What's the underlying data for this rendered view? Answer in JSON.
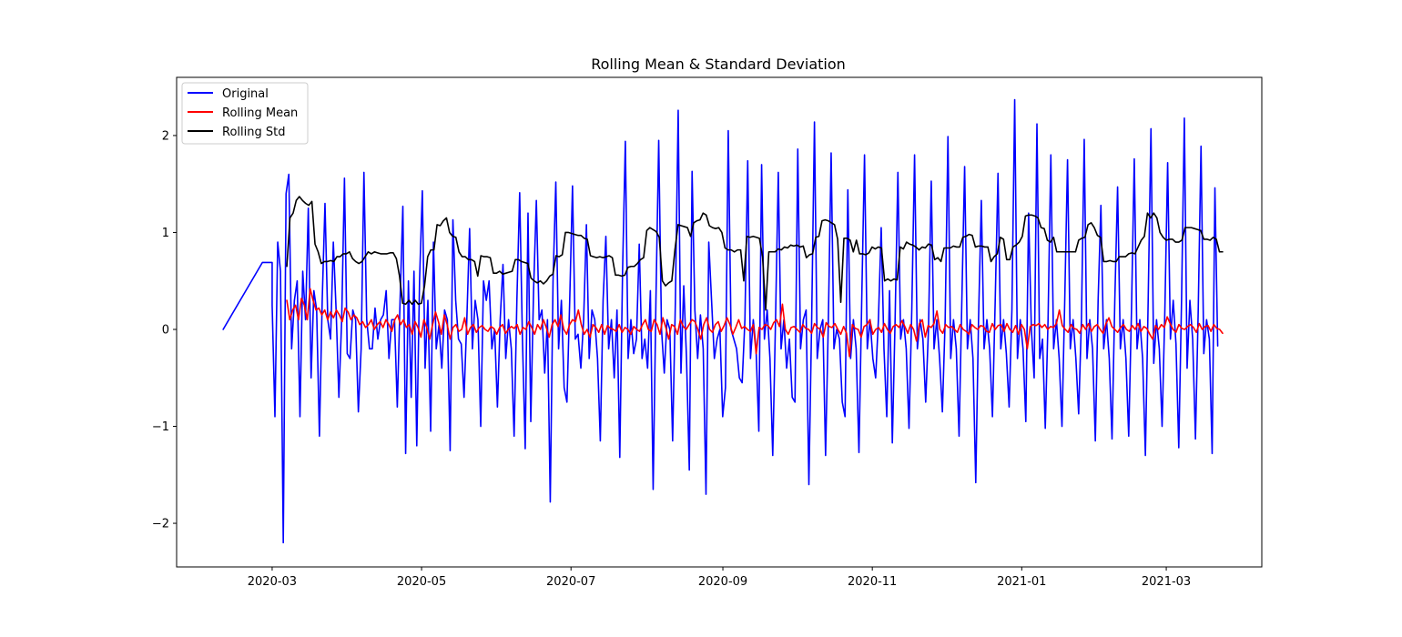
{
  "chart_data": {
    "type": "line",
    "title": "Rolling Mean & Standard Deviation",
    "xlabel": "",
    "ylabel": "",
    "x_axis": {
      "kind": "date",
      "range": [
        "2020-01-22",
        "2021-04-09"
      ],
      "tick_labels": [
        "2020-03",
        "2020-05",
        "2020-07",
        "2020-09",
        "2020-11",
        "2021-01",
        "2021-03"
      ],
      "tick_dates": [
        "2020-03-01",
        "2020-05-01",
        "2020-07-01",
        "2020-09-01",
        "2020-11-01",
        "2021-01-01",
        "2021-03-01"
      ]
    },
    "y_axis": {
      "range": [
        -2.45,
        2.6
      ],
      "ticks": [
        -2,
        -1,
        0,
        1,
        2
      ],
      "tick_labels": [
        "−2",
        "−1",
        "0",
        "1",
        "2"
      ]
    },
    "grid": false,
    "legend_position": "top-left",
    "series": [
      {
        "name": "Original",
        "color": "#0000ff",
        "start_date": "2020-02-10",
        "leading_points": [
          [
            0,
            0.0
          ],
          [
            16,
            0.69
          ],
          [
            19,
            0.69
          ],
          [
            20,
            0.69
          ]
        ],
        "period": 7,
        "daily_from": "2020-03-01",
        "daily_end": "2021-03-22",
        "values": [
          0.25,
          -0.9,
          0.9,
          0.6,
          -2.2,
          1.4,
          1.6,
          -0.2,
          0.3,
          0.5,
          -0.9,
          0.6,
          0.1,
          1.25,
          -0.5,
          0.4,
          0.2,
          -1.1,
          0.3,
          1.3,
          0.1,
          -0.1,
          0.9,
          0.2,
          -0.7,
          0.1,
          1.56,
          -0.25,
          -0.3,
          0.2,
          0.1,
          -0.85,
          -0.2,
          1.62,
          0.1,
          -0.2,
          -0.2,
          0.22,
          -0.1,
          0.1,
          0.15,
          0.4,
          -0.3,
          0.1,
          0.1,
          -0.8,
          0.3,
          1.27,
          -1.28,
          0.5,
          -0.7,
          0.6,
          -1.2,
          0.5,
          1.43,
          -0.4,
          0.3,
          -1.05,
          0.9,
          -0.2,
          0.05,
          -0.4,
          0.2,
          0.1,
          -1.25,
          1.13,
          0.3,
          -0.1,
          -0.15,
          -0.7,
          0.1,
          1.04,
          -0.2,
          0.3,
          0.1,
          -1.0,
          0.5,
          0.3,
          0.5,
          -0.2,
          0.0,
          -0.8,
          0.1,
          0.67,
          -0.3,
          0.1,
          -0.2,
          -1.1,
          0.3,
          1.41,
          -0.1,
          -1.23,
          1.2,
          -0.95,
          0.4,
          1.33,
          0.1,
          0.2,
          -0.45,
          0.1,
          -1.78,
          0.5,
          1.52,
          -0.2,
          0.3,
          -0.6,
          -0.75,
          0.3,
          1.48,
          -0.1,
          -0.05,
          -0.4,
          0.1,
          1.08,
          -0.3,
          0.2,
          0.1,
          -0.3,
          -1.15,
          0.3,
          0.96,
          -0.2,
          0.1,
          -0.5,
          0.2,
          -1.32,
          0.6,
          1.94,
          -0.3,
          0.1,
          -0.25,
          -0.1,
          0.88,
          -0.3,
          -0.1,
          -0.4,
          0.4,
          -1.65,
          0.3,
          1.95,
          0.0,
          -0.45,
          0.1,
          0.0,
          -1.15,
          0.3,
          2.26,
          -0.45,
          0.45,
          -0.3,
          -1.45,
          1.63,
          0.2,
          -0.3,
          0.15,
          -0.2,
          -1.7,
          0.9,
          0.3,
          -0.3,
          -0.1,
          0.0,
          -0.9,
          -0.6,
          2.05,
          0.0,
          -0.1,
          -0.2,
          -0.5,
          -0.55,
          0.1,
          1.74,
          -0.3,
          0.1,
          -0.2,
          -1.05,
          1.7,
          -0.1,
          0.2,
          -0.3,
          -1.3,
          0.1,
          1.62,
          -0.2,
          0.1,
          -0.4,
          -0.1,
          -0.7,
          -0.75,
          1.86,
          -0.2,
          0.1,
          0.2,
          -1.6,
          0.1,
          2.14,
          -0.3,
          0.0,
          0.1,
          -1.3,
          0.1,
          1.82,
          -0.2,
          0.0,
          -0.1,
          -0.75,
          -0.9,
          1.44,
          -0.3,
          0.1,
          -0.2,
          -1.27,
          0.3,
          1.8,
          -0.2,
          0.1,
          -0.3,
          -0.5,
          0.1,
          1.05,
          -0.2,
          -0.9,
          0.4,
          -1.17,
          0.1,
          1.62,
          -0.1,
          0.1,
          -0.2,
          -1.02,
          0.2,
          1.8,
          -0.2,
          0.1,
          -0.1,
          -0.75,
          0.0,
          1.53,
          -0.2,
          0.1,
          -0.3,
          -0.85,
          0.1,
          1.99,
          -0.3,
          0.1,
          -0.2,
          -1.1,
          0.3,
          1.68,
          -0.2,
          0.1,
          -0.3,
          -1.58,
          0.1,
          1.33,
          -0.2,
          0.1,
          -0.2,
          -0.9,
          0.3,
          1.61,
          -0.2,
          0.1,
          -0.25,
          -0.8,
          0.2,
          2.37,
          -0.3,
          0.1,
          -0.2,
          -0.95,
          1.2,
          0.0,
          -0.5,
          2.12,
          -0.3,
          -0.1,
          -1.02,
          0.1,
          1.8,
          -0.2,
          0.1,
          -0.3,
          -1.0,
          0.3,
          1.75,
          -0.2,
          0.1,
          -0.3,
          -0.87,
          0.1,
          1.96,
          -0.3,
          0.1,
          -0.2,
          -1.15,
          0.3,
          1.28,
          -0.2,
          0.1,
          -0.3,
          -1.13,
          0.3,
          1.47,
          -0.2,
          0.1,
          -0.3,
          -1.1,
          0.2,
          1.76,
          -0.2,
          0.1,
          -0.3,
          -1.3,
          0.3,
          2.07,
          -0.35,
          0.1,
          -0.2,
          -1.0,
          0.2,
          1.72,
          -0.1,
          0.3,
          -0.15,
          -1.22,
          0.3,
          2.18,
          -0.4,
          0.3,
          -0.1,
          -1.13,
          0.2,
          1.89,
          -0.25,
          0.1,
          -0.1,
          -1.28,
          1.46,
          -0.17
        ]
      },
      {
        "name": "Rolling Mean",
        "color": "#ff0000",
        "start_date": "2020-03-07",
        "values": [
          0.3,
          0.1,
          0.2,
          0.25,
          0.1,
          0.32,
          0.25,
          0.1,
          0.42,
          0.3,
          0.2,
          0.22,
          0.15,
          0.2,
          0.1,
          0.18,
          0.12,
          0.2,
          0.15,
          0.08,
          0.22,
          0.18,
          0.1,
          0.15,
          0.12,
          0.05,
          0.08,
          0.02,
          0.05,
          0.1,
          0.0,
          0.05,
          0.08,
          0.02,
          0.1,
          0.05,
          -0.02,
          0.1,
          0.15,
          0.05,
          0.1,
          0.02,
          0.05,
          -0.05,
          0.08,
          0.02,
          -0.08,
          0.1,
          0.02,
          -0.1,
          0.05,
          0.18,
          0.08,
          -0.05,
          0.15,
          0.05,
          -0.1,
          0.02,
          0.05,
          -0.02,
          0.0,
          0.12,
          -0.05,
          0.02,
          0.05,
          -0.03,
          0.02,
          0.04,
          0.0,
          -0.02,
          0.03,
          0.01,
          -0.05,
          0.02,
          0.05,
          -0.04,
          0.0,
          0.03,
          0.01,
          0.05,
          -0.05,
          0.02,
          0.0,
          0.08,
          0.02,
          -0.05,
          0.05,
          0.0,
          0.1,
          0.02,
          -0.08,
          0.05,
          0.1,
          0.03,
          0.15,
          0.0,
          -0.05,
          0.05,
          0.1,
          0.08,
          0.2,
          0.05,
          -0.05,
          0.0,
          -0.08,
          0.05,
          0.02,
          -0.03,
          0.05,
          -0.05,
          0.04,
          0.01,
          0.0,
          -0.02,
          0.05,
          -0.03,
          0.02,
          0.0,
          -0.05,
          0.03,
          0.0,
          -0.02,
          0.05,
          0.1,
          0.0,
          -0.02,
          0.1,
          0.05,
          -0.05,
          0.12,
          0.02,
          -0.1,
          0.05,
          0.03,
          -0.05,
          0.1,
          0.03,
          0.0,
          0.05,
          0.1,
          0.08,
          0.0,
          -0.1,
          0.05,
          0.12,
          0.0,
          -0.03,
          0.05,
          0.08,
          -0.02,
          0.04,
          0.12,
          0.05,
          -0.05,
          0.02,
          0.1,
          0.01,
          0.03,
          0.0,
          -0.02,
          0.05,
          -0.25,
          0.02,
          0.0,
          0.05,
          0.04,
          0.0,
          0.07,
          0.1,
          0.03,
          0.26,
          0.0,
          -0.05,
          0.02,
          0.03,
          0.0,
          -0.03,
          0.05,
          0.01,
          0.0,
          -0.04,
          0.06,
          0.02,
          0.0,
          -0.08,
          0.07,
          0.03,
          0.02,
          0.06,
          0.0,
          -0.05,
          0.03,
          -0.04,
          -0.28,
          0.05,
          0.01,
          0.0,
          -0.08,
          0.03,
          0.05,
          0.1,
          -0.05,
          0.0,
          0.02,
          -0.03,
          0.06,
          0.0,
          -0.04,
          0.03,
          0.05,
          0.02,
          0.09,
          0.03,
          -0.04,
          0.05,
          0.0,
          -0.12,
          0.06,
          0.1,
          -0.08,
          0.04,
          0.02,
          0.06,
          0.19,
          0.0,
          -0.04,
          0.05,
          0.02,
          0.03,
          0.0,
          -0.03,
          0.05,
          0.0,
          -0.02,
          -0.05,
          0.05,
          0.02,
          0.0,
          0.04,
          0.03,
          -0.02,
          -0.03,
          0.06,
          0.0,
          0.04,
          0.05,
          -0.02,
          0.06,
          0.0,
          -0.03,
          0.04,
          -0.05,
          0.05,
          0.0,
          -0.2,
          0.03,
          0.05,
          0.04,
          0.06,
          0.02,
          0.05,
          0.0,
          0.03,
          0.02,
          0.06,
          0.2,
          0.04,
          0.0,
          -0.03,
          0.05,
          0.01,
          0.0,
          -0.04,
          0.05,
          0.0,
          0.06,
          -0.02,
          0.03,
          0.05,
          0.0,
          -0.04,
          0.06,
          0.12,
          0.03,
          0.0,
          -0.03,
          0.02,
          0.05,
          0.0,
          -0.02,
          0.04,
          0.0,
          0.06,
          -0.02,
          0.03,
          0.01,
          -0.05,
          -0.1,
          0.04,
          0.0,
          0.05,
          0.02,
          0.13,
          0.06,
          0.0,
          -0.03,
          0.05,
          0.01,
          0.0,
          0.03,
          0.05,
          0.02,
          -0.03,
          0.06,
          0.0,
          0.03,
          0.04,
          -0.02,
          0.05,
          0.01,
          0.0,
          -0.04
        ]
      },
      {
        "name": "Rolling Std",
        "color": "#000000",
        "start_date": "2020-03-07",
        "values": [
          0.65,
          1.15,
          1.2,
          1.33,
          1.37,
          1.33,
          1.3,
          1.28,
          1.32,
          0.88,
          0.8,
          0.68,
          0.7,
          0.7,
          0.71,
          0.7,
          0.75,
          0.75,
          0.78,
          0.78,
          0.8,
          0.73,
          0.7,
          0.68,
          0.7,
          0.75,
          0.8,
          0.78,
          0.8,
          0.79,
          0.78,
          0.78,
          0.78,
          0.79,
          0.79,
          0.73,
          0.55,
          0.27,
          0.26,
          0.3,
          0.26,
          0.3,
          0.26,
          0.27,
          0.45,
          0.75,
          0.82,
          0.82,
          1.08,
          1.07,
          1.12,
          1.15,
          1.0,
          0.96,
          0.95,
          0.8,
          0.75,
          0.75,
          0.72,
          0.72,
          0.7,
          0.55,
          0.76,
          0.75,
          0.75,
          0.74,
          0.58,
          0.58,
          0.6,
          0.57,
          0.58,
          0.59,
          0.6,
          0.72,
          0.72,
          0.7,
          0.69,
          0.68,
          0.53,
          0.5,
          0.48,
          0.5,
          0.47,
          0.5,
          0.55,
          0.57,
          0.76,
          0.75,
          0.77,
          1.0,
          1.0,
          0.99,
          0.98,
          0.97,
          0.97,
          0.94,
          0.93,
          0.76,
          0.75,
          0.74,
          0.75,
          0.74,
          0.75,
          0.76,
          0.74,
          0.56,
          0.56,
          0.55,
          0.56,
          0.64,
          0.65,
          0.65,
          0.68,
          0.72,
          0.74,
          1.02,
          1.05,
          1.03,
          1.01,
          0.95,
          0.5,
          0.45,
          0.48,
          0.5,
          0.82,
          1.08,
          1.07,
          1.06,
          1.05,
          0.96,
          1.1,
          1.12,
          1.13,
          1.2,
          1.18,
          1.07,
          1.05,
          1.04,
          1.05,
          1.0,
          0.84,
          0.82,
          0.82,
          0.8,
          0.82,
          0.82,
          0.5,
          0.96,
          0.95,
          0.96,
          0.95,
          0.94,
          0.75,
          0.2,
          0.8,
          0.8,
          0.8,
          0.83,
          0.82,
          0.85,
          0.84,
          0.87,
          0.86,
          0.87,
          0.85,
          0.86,
          0.74,
          0.77,
          0.78,
          0.95,
          0.96,
          1.12,
          1.13,
          1.12,
          1.1,
          1.08,
          0.93,
          0.28,
          0.94,
          0.94,
          0.92,
          0.8,
          0.92,
          0.78,
          0.78,
          0.77,
          0.79,
          0.85,
          0.83,
          0.85,
          0.84,
          0.5,
          0.52,
          0.5,
          0.52,
          0.51,
          0.85,
          0.83,
          0.9,
          0.88,
          0.87,
          0.85,
          0.82,
          0.85,
          0.84,
          0.88,
          0.87,
          0.72,
          0.74,
          0.7,
          0.84,
          0.84,
          0.84,
          0.86,
          0.85,
          0.85,
          0.95,
          0.96,
          0.98,
          0.97,
          0.85,
          0.86,
          0.86,
          0.85,
          0.85,
          0.7,
          0.75,
          0.78,
          0.95,
          0.93,
          0.72,
          0.72,
          0.85,
          0.87,
          0.9,
          0.96,
          1.17,
          1.18,
          1.18,
          1.17,
          1.15,
          1.05,
          1.04,
          0.92,
          0.9,
          0.95,
          0.8,
          0.8,
          0.8,
          0.8,
          0.8,
          0.8,
          0.8,
          0.92,
          0.94,
          0.95,
          1.08,
          1.1,
          1.05,
          0.97,
          0.95,
          0.7,
          0.7,
          0.71,
          0.7,
          0.7,
          0.75,
          0.75,
          0.75,
          0.78,
          0.79,
          0.78,
          0.85,
          0.92,
          0.96,
          1.2,
          1.15,
          1.2,
          1.15,
          1.0,
          0.95,
          0.92,
          0.93,
          0.93,
          0.9,
          0.9,
          0.92,
          1.05,
          1.05,
          1.05,
          1.04,
          1.03,
          1.02,
          0.93,
          0.93,
          0.92,
          0.95,
          0.93,
          0.8,
          0.8
        ]
      }
    ]
  }
}
